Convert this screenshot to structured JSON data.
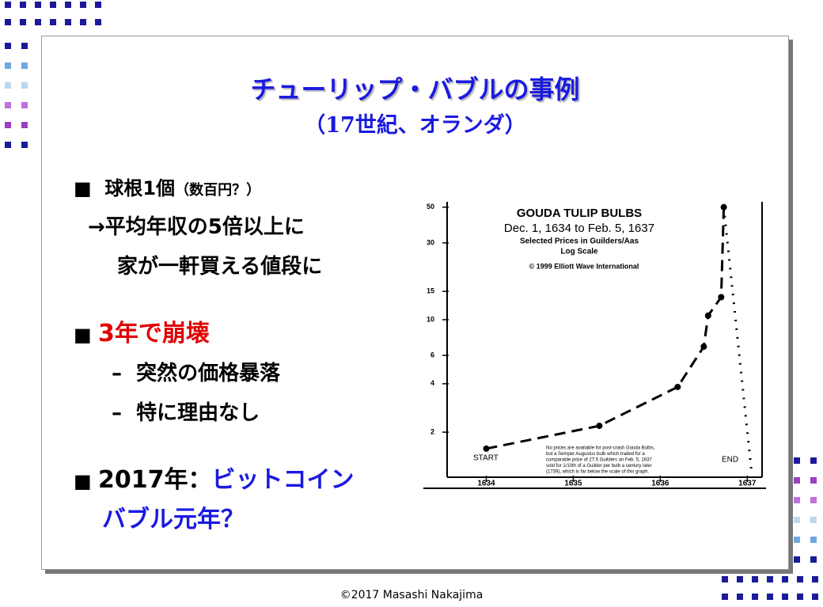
{
  "slide": {
    "title": "チューリップ・バブルの事例",
    "subtitle": "（17世紀、オランダ）",
    "bullets": [
      {
        "text": "球根1個",
        "note": "（数百円？）"
      },
      {
        "text": "→平均年収の5倍以上に"
      },
      {
        "text": "家が一軒買える値段に"
      },
      {
        "text": "3年で崩壊"
      },
      {
        "text": "突然の価格暴落"
      },
      {
        "text": "特に理由なし"
      },
      {
        "text": "2017年：",
        "highlight": "ビットコイン"
      },
      {
        "text": "バブル元年？"
      }
    ]
  },
  "footer": "©2017 Masashi Nakajima",
  "chart_data": {
    "type": "line",
    "title": "GOUDA TULIP BULBS",
    "subtitle": "Dec. 1, 1634 to Feb. 5, 1637",
    "lines": [
      "Selected Prices in Guilders/Aas",
      "Log Scale",
      "© 1999 Elliott Wave International"
    ],
    "note": [
      "No prices are available for post-crash Gouda Bulbs,",
      "but a Semper Augustus bulb which traded for a",
      "comparable price of 27.5 Guilders on Feb. 5, 1637",
      "sold for 1/10th of a Guilder per bulb a century later",
      "(1739), which is far below the scale of this graph."
    ],
    "start_label": "START",
    "end_label": "END",
    "log_scale": true,
    "xlim": [
      1633.55,
      1637.17
    ],
    "xticks": [
      1634,
      1635,
      1636,
      1637
    ],
    "ylim": [
      1.05,
      54
    ],
    "yticks": [
      2,
      4,
      6,
      10,
      15,
      30,
      50
    ],
    "series": [
      {
        "color": "#000000",
        "style": "dashed",
        "x": [
          1634.0,
          1635.3,
          1636.2,
          1636.5,
          1636.55,
          1636.7,
          1636.73
        ],
        "values": [
          1.58,
          2.19,
          3.82,
          6.8,
          10.6,
          13.8,
          50
        ]
      },
      {
        "color": "#000000",
        "style": "dotted",
        "x": [
          1636.73,
          1637.05
        ],
        "values": [
          50,
          1.12
        ]
      }
    ]
  }
}
